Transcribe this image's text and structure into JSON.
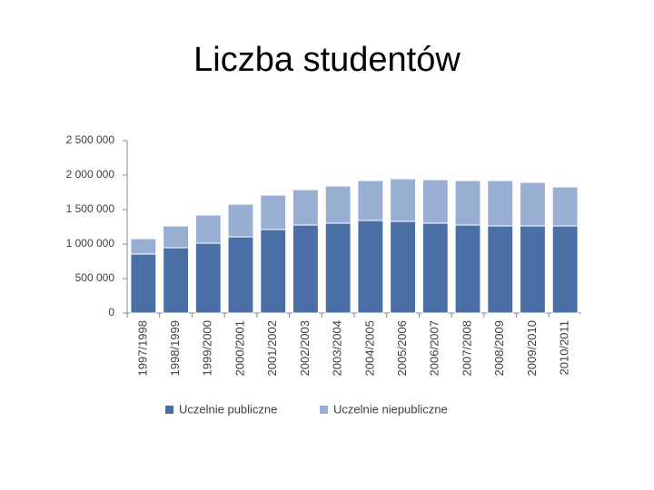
{
  "chart_data": {
    "type": "stacked-bar",
    "title": "Liczba studentów",
    "categories": [
      "1997/1998",
      "1998/1999",
      "1999/2000",
      "2000/2001",
      "2001/2002",
      "2002/2003",
      "2003/2004",
      "2004/2005",
      "2005/2006",
      "2006/2007",
      "2007/2008",
      "2008/2009",
      "2009/2010",
      "2010/2011"
    ],
    "series": [
      {
        "name": "Uczelnie publiczne",
        "color": "#4a6fa5",
        "values": [
          855000,
          947000,
          1013000,
          1105000,
          1211000,
          1276000,
          1303000,
          1342000,
          1329000,
          1303000,
          1276000,
          1263000,
          1263000,
          1263000
        ]
      },
      {
        "name": "Uczelnie niepubliczne",
        "color": "#98aed2",
        "values": [
          224000,
          316000,
          408000,
          474000,
          500000,
          513000,
          539000,
          579000,
          618000,
          631000,
          645000,
          658000,
          632000,
          566000
        ]
      }
    ],
    "ylim": [
      0,
      2500000
    ],
    "yticks": [
      0,
      {
        "value": 500000,
        "label": "500 000"
      },
      {
        "value": 1000000,
        "label": "1 000 000"
      },
      {
        "value": 1500000,
        "label": "1 500 000"
      },
      {
        "value": 2000000,
        "label": "2 000 000"
      },
      {
        "value": 2500000,
        "label": "2 500 000"
      }
    ],
    "grid": false
  }
}
